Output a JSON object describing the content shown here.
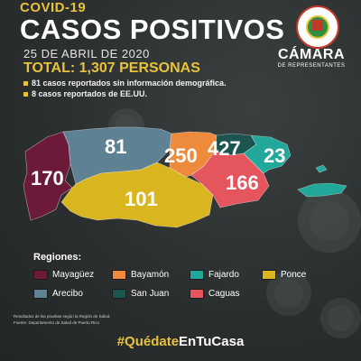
{
  "header": {
    "tag": "COVID-19",
    "title": "CASOS POSITIVOS",
    "date": "25 DE ABRIL DE 2020",
    "total": "TOTAL: 1,307 PERSONAS",
    "notes": [
      "81 casos reportados sin información demográfica.",
      "8 casos reportados de EE.UU."
    ]
  },
  "brand": {
    "name": "CÁMARA",
    "subtitle": "DE REPRESENTANTES"
  },
  "map": {
    "regions": [
      {
        "key": "mayaguez",
        "name": "Mayagüez",
        "cases": "170",
        "color": "#6b1a3a"
      },
      {
        "key": "arecibo",
        "name": "Arecibo",
        "cases": "81",
        "color": "#5e8294"
      },
      {
        "key": "ponce",
        "name": "Ponce",
        "cases": "101",
        "color": "#d9b51f"
      },
      {
        "key": "bayamon",
        "name": "Bayamón",
        "cases": "250",
        "color": "#ee8a3c"
      },
      {
        "key": "sanjuan",
        "name": "San Juan",
        "cases": "427",
        "color": "#1c5450"
      },
      {
        "key": "caguas",
        "name": "Caguas",
        "cases": "166",
        "color": "#e4555e"
      },
      {
        "key": "fajardo",
        "name": "Fajardo",
        "cases": "23",
        "color": "#22a79b"
      }
    ]
  },
  "legend": {
    "title": "Regiones:",
    "items": [
      {
        "label": "Mayagüez",
        "color": "#6b1a3a"
      },
      {
        "label": "Arecibo",
        "color": "#5e8294"
      },
      {
        "label": "Bayamón",
        "color": "#ee8a3c"
      },
      {
        "label": "San Juan",
        "color": "#1c5450"
      },
      {
        "label": "Fajardo",
        "color": "#22a79b"
      },
      {
        "label": "Caguas",
        "color": "#e4555e"
      },
      {
        "label": "Ponce",
        "color": "#d9b51f"
      }
    ]
  },
  "footer": {
    "line1": "Resultados de las pruebas según la Región de Salud.",
    "line2": "Fuente: Departamento de Salud de Puerto Rico",
    "hashtag_hash": "#Quédate",
    "hashtag_rest": "EnTuCasa"
  }
}
